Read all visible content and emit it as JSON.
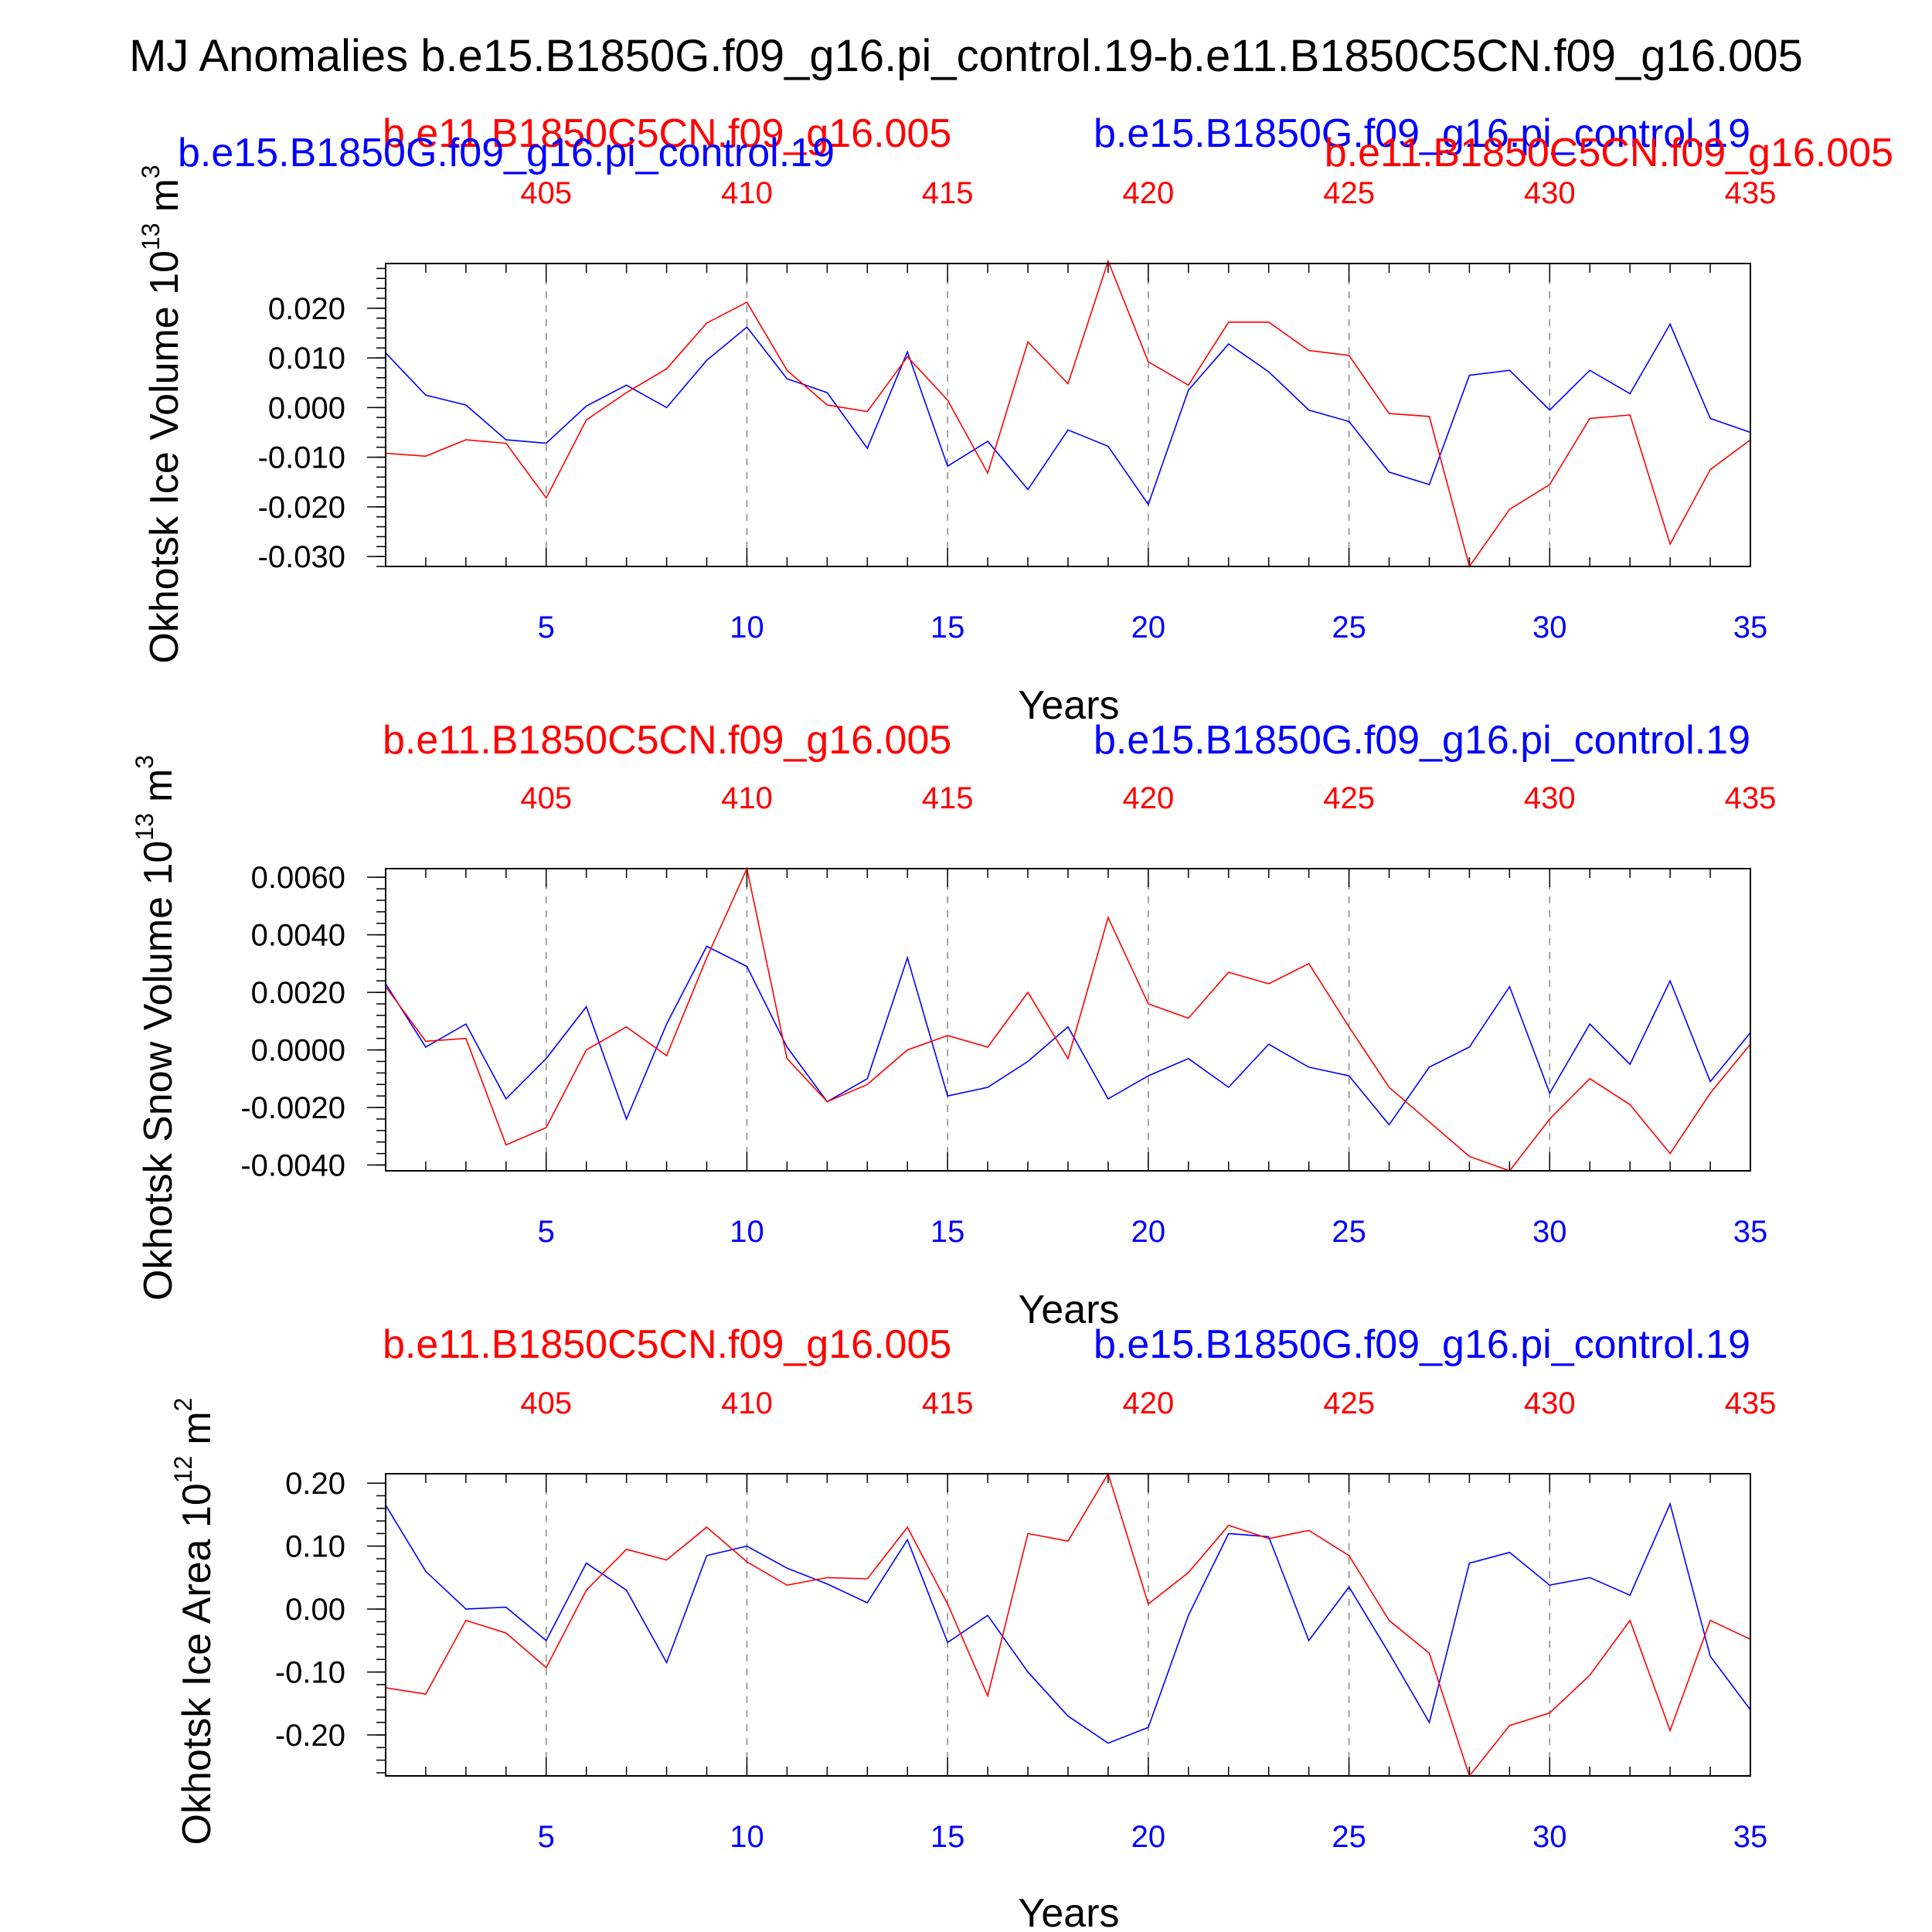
{
  "title": "MJ Anomalies b.e15.B1850G.f09_g16.pi_control.19-b.e11.B1850C5CN.f09_g16.005",
  "colors": {
    "case": "#0000ff",
    "control": "#ff0000",
    "axis": "#000000",
    "grid": "#888888"
  },
  "chart_data": [
    {
      "type": "line",
      "xlabel": "Years",
      "ylabel": "Okhotsk Ice Volume 10",
      "yunit_exp": "13",
      "yunit": "m",
      "yunit_pow": "3",
      "ylim": [
        -0.032,
        0.029
      ],
      "yticks": [
        -0.03,
        -0.02,
        -0.01,
        0.0,
        0.01,
        0.02
      ],
      "ytick_labels": [
        "-0.030",
        "-0.020",
        "-0.010",
        "0.000",
        "0.010",
        "0.020"
      ],
      "grid": "vertical dashed at x tick marks",
      "x_bottom": {
        "min": 1,
        "max": 35,
        "ticks": [
          5,
          10,
          15,
          20,
          25,
          30,
          35
        ],
        "labels": [
          "5",
          "10",
          "15",
          "20",
          "25",
          "30",
          "35"
        ]
      },
      "x_top": {
        "min": 401,
        "max": 435,
        "ticks": [
          405,
          410,
          415,
          420,
          425,
          430,
          435
        ],
        "labels": [
          "405",
          "410",
          "415",
          "420",
          "425",
          "430",
          "435"
        ]
      },
      "header_left": "b.e11.B1850C5CN.f09_g16.005",
      "header_right": "b.e15.B1850G.f09_g16.pi_control.19",
      "header_overlay_left": "b.e15.B1850G.f09_g16.pi_control.19",
      "header_overlay_right": "b.e11.B1850C5CN.f09_g16.005",
      "series": [
        {
          "name": "b.e15.B1850G.f09_g16.pi_control.19",
          "color": "#0000ff",
          "x": [
            1,
            2,
            3,
            4,
            5,
            6,
            7,
            8,
            9,
            10,
            11,
            12,
            13,
            14,
            15,
            16,
            17,
            18,
            19,
            20,
            21,
            22,
            23,
            24,
            25,
            26,
            27,
            28,
            29,
            30,
            31,
            32,
            33,
            34,
            35
          ],
          "values": [
            0.011,
            0.0025,
            0.0005,
            -0.0065,
            -0.0072,
            0.0003,
            0.0045,
            0.0,
            0.0095,
            0.0162,
            0.0058,
            0.003,
            -0.0082,
            0.0112,
            -0.0118,
            -0.0068,
            -0.0165,
            -0.0045,
            -0.0078,
            -0.0195,
            0.0035,
            0.0128,
            0.0072,
            -0.0005,
            -0.0028,
            -0.013,
            -0.0155,
            0.0065,
            0.0075,
            -0.0005,
            0.0075,
            0.0028,
            0.0168,
            -0.0022,
            -0.005
          ]
        },
        {
          "name": "b.e11.B1850C5CN.f09_g16.005",
          "color": "#ff0000",
          "x": [
            1,
            2,
            3,
            4,
            5,
            6,
            7,
            8,
            9,
            10,
            11,
            12,
            13,
            14,
            15,
            16,
            17,
            18,
            19,
            20,
            21,
            22,
            23,
            24,
            25,
            26,
            27,
            28,
            29,
            30,
            31,
            32,
            33,
            34,
            35
          ],
          "values": [
            -0.0092,
            -0.0098,
            -0.0065,
            -0.0072,
            -0.0182,
            -0.0025,
            0.003,
            0.0078,
            0.017,
            0.0212,
            0.0075,
            0.0005,
            -0.0008,
            0.0102,
            0.0015,
            -0.0132,
            0.0132,
            0.0048,
            0.0295,
            0.0092,
            0.0045,
            0.0172,
            0.0172,
            0.0115,
            0.0105,
            -0.0012,
            -0.0018,
            -0.032,
            -0.0205,
            -0.0155,
            -0.0022,
            -0.0015,
            -0.0275,
            -0.0125,
            -0.0065
          ]
        }
      ]
    },
    {
      "type": "line",
      "xlabel": "Years",
      "ylabel": "Okhotsk Snow Volume 10",
      "yunit_exp": "13",
      "yunit": "m",
      "yunit_pow": "3",
      "ylim": [
        -0.0042,
        0.0063
      ],
      "yticks": [
        -0.004,
        -0.002,
        0.0,
        0.002,
        0.004,
        0.006
      ],
      "ytick_labels": [
        "-0.0040",
        "-0.0020",
        "0.0000",
        "0.0020",
        "0.0040",
        "0.0060"
      ],
      "grid": "vertical dashed at x tick marks",
      "x_bottom": {
        "min": 1,
        "max": 35,
        "ticks": [
          5,
          10,
          15,
          20,
          25,
          30,
          35
        ],
        "labels": [
          "5",
          "10",
          "15",
          "20",
          "25",
          "30",
          "35"
        ]
      },
      "x_top": {
        "min": 401,
        "max": 435,
        "ticks": [
          405,
          410,
          415,
          420,
          425,
          430,
          435
        ],
        "labels": [
          "405",
          "410",
          "415",
          "420",
          "425",
          "430",
          "435"
        ]
      },
      "header_left": "b.e11.B1850C5CN.f09_g16.005",
      "header_right": "b.e15.B1850G.f09_g16.pi_control.19",
      "series": [
        {
          "name": "b.e15.B1850G.f09_g16.pi_control.19",
          "color": "#0000ff",
          "x": [
            1,
            2,
            3,
            4,
            5,
            6,
            7,
            8,
            9,
            10,
            11,
            12,
            13,
            14,
            15,
            16,
            17,
            18,
            19,
            20,
            21,
            22,
            23,
            24,
            25,
            26,
            27,
            28,
            29,
            30,
            31,
            32,
            33,
            34,
            35
          ],
          "values": [
            0.0023,
            0.0001,
            0.0009,
            -0.0017,
            -0.0003,
            0.0015,
            -0.0024,
            0.0009,
            0.0036,
            0.0029,
            0.0001,
            -0.0018,
            -0.001,
            0.0032,
            -0.0016,
            -0.0013,
            -0.0004,
            0.0008,
            -0.0017,
            -0.0009,
            -0.0003,
            -0.0013,
            0.0002,
            -0.0006,
            -0.0009,
            -0.0026,
            -0.0006,
            0.0001,
            0.0022,
            -0.0015,
            0.0009,
            -0.0005,
            0.0024,
            -0.0011,
            0.0006
          ]
        },
        {
          "name": "b.e11.B1850C5CN.f09_g16.005",
          "color": "#ff0000",
          "x": [
            1,
            2,
            3,
            4,
            5,
            6,
            7,
            8,
            9,
            10,
            11,
            12,
            13,
            14,
            15,
            16,
            17,
            18,
            19,
            20,
            21,
            22,
            23,
            24,
            25,
            26,
            27,
            28,
            29,
            30,
            31,
            32,
            33,
            34,
            35
          ],
          "values": [
            0.0022,
            0.0003,
            0.0004,
            -0.0033,
            -0.0027,
            0.0,
            0.0008,
            -0.0002,
            0.0032,
            0.0063,
            -0.0003,
            -0.0018,
            -0.0012,
            0.0,
            0.0005,
            0.0001,
            0.002,
            -0.0003,
            0.0046,
            0.0016,
            0.0011,
            0.0027,
            0.0023,
            0.003,
            0.0008,
            -0.0013,
            -0.0025,
            -0.0037,
            -0.0042,
            -0.0024,
            -0.001,
            -0.0019,
            -0.0036,
            -0.0015,
            0.0002
          ]
        }
      ]
    },
    {
      "type": "line",
      "xlabel": "Years",
      "ylabel": "Okhotsk Ice Area 10",
      "yunit_exp": "12",
      "yunit": "m",
      "yunit_pow": "2",
      "ylim": [
        -0.265,
        0.215
      ],
      "yticks": [
        -0.2,
        -0.1,
        0.0,
        0.1,
        0.2
      ],
      "ytick_labels": [
        "-0.20",
        "-0.10",
        "0.00",
        "0.10",
        "0.20"
      ],
      "grid": "vertical dashed at x tick marks",
      "x_bottom": {
        "min": 1,
        "max": 35,
        "ticks": [
          5,
          10,
          15,
          20,
          25,
          30,
          35
        ],
        "labels": [
          "5",
          "10",
          "15",
          "20",
          "25",
          "30",
          "35"
        ]
      },
      "x_top": {
        "min": 401,
        "max": 435,
        "ticks": [
          405,
          410,
          415,
          420,
          425,
          430,
          435
        ],
        "labels": [
          "405",
          "410",
          "415",
          "420",
          "425",
          "430",
          "435"
        ]
      },
      "header_left": "b.e11.B1850C5CN.f09_g16.005",
      "header_right": "b.e15.B1850G.f09_g16.pi_control.19",
      "series": [
        {
          "name": "b.e15.B1850G.f09_g16.pi_control.19",
          "color": "#0000ff",
          "x": [
            1,
            2,
            3,
            4,
            5,
            6,
            7,
            8,
            9,
            10,
            11,
            12,
            13,
            14,
            15,
            16,
            17,
            18,
            19,
            20,
            21,
            22,
            23,
            24,
            25,
            26,
            27,
            28,
            29,
            30,
            31,
            32,
            33,
            34,
            35
          ],
          "values": [
            0.165,
            0.06,
            0.0,
            0.003,
            -0.05,
            0.073,
            0.03,
            -0.085,
            0.085,
            0.1,
            0.065,
            0.04,
            0.01,
            0.11,
            -0.053,
            -0.01,
            -0.1,
            -0.17,
            -0.213,
            -0.188,
            -0.01,
            0.12,
            0.115,
            -0.05,
            0.035,
            -0.07,
            -0.18,
            0.073,
            0.09,
            0.038,
            0.05,
            0.022,
            0.167,
            -0.075,
            -0.16
          ]
        },
        {
          "name": "b.e11.B1850C5CN.f09_g16.005",
          "color": "#ff0000",
          "x": [
            1,
            2,
            3,
            4,
            5,
            6,
            7,
            8,
            9,
            10,
            11,
            12,
            13,
            14,
            15,
            16,
            17,
            18,
            19,
            20,
            21,
            22,
            23,
            24,
            25,
            26,
            27,
            28,
            29,
            30,
            31,
            32,
            33,
            34,
            35
          ],
          "values": [
            -0.125,
            -0.135,
            -0.018,
            -0.038,
            -0.093,
            0.03,
            0.095,
            0.078,
            0.13,
            0.075,
            0.038,
            0.05,
            0.048,
            0.13,
            0.008,
            -0.138,
            0.12,
            0.108,
            0.215,
            0.008,
            0.058,
            0.133,
            0.112,
            0.125,
            0.085,
            -0.018,
            -0.07,
            -0.265,
            -0.185,
            -0.165,
            -0.105,
            -0.018,
            -0.193,
            -0.018,
            -0.048
          ]
        }
      ]
    }
  ]
}
